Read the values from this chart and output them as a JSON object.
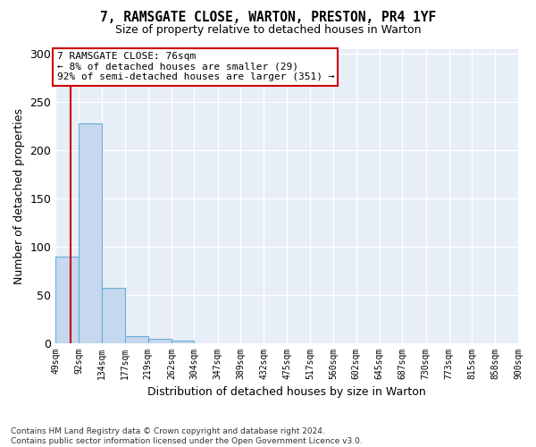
{
  "title": "7, RAMSGATE CLOSE, WARTON, PRESTON, PR4 1YF",
  "subtitle": "Size of property relative to detached houses in Warton",
  "xlabel": "Distribution of detached houses by size in Warton",
  "ylabel": "Number of detached properties",
  "bin_edges": [
    49,
    92,
    134,
    177,
    219,
    262,
    304,
    347,
    389,
    432,
    475,
    517,
    560,
    602,
    645,
    687,
    730,
    773,
    815,
    858,
    900
  ],
  "bin_counts": [
    90,
    228,
    57,
    7,
    4,
    2,
    0,
    0,
    0,
    0,
    0,
    0,
    0,
    0,
    0,
    0,
    0,
    0,
    0,
    0
  ],
  "bar_color": "#c5d8ef",
  "bar_edge_color": "#6baed6",
  "vline_x": 76,
  "vline_color": "#cc0000",
  "annotation_text": "7 RAMSGATE CLOSE: 76sqm\n← 8% of detached houses are smaller (29)\n92% of semi-detached houses are larger (351) →",
  "annotation_box_color": "white",
  "annotation_box_edge": "#cc0000",
  "ylim": [
    0,
    305
  ],
  "yticks": [
    0,
    50,
    100,
    150,
    200,
    250,
    300
  ],
  "footer_text": "Contains HM Land Registry data © Crown copyright and database right 2024.\nContains public sector information licensed under the Open Government Licence v3.0.",
  "bg_color": "#e8eef7"
}
